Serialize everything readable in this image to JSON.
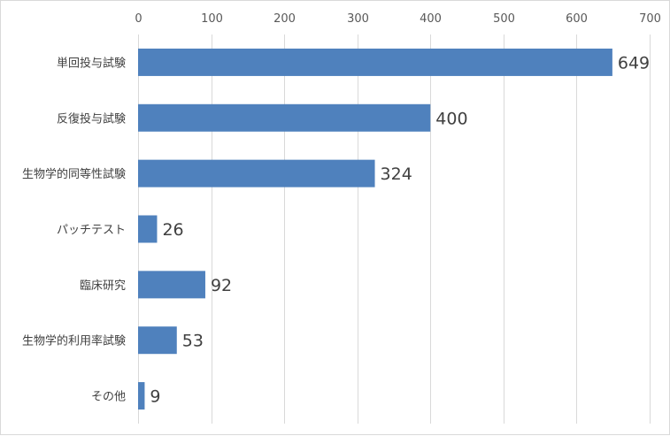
{
  "chart_data": {
    "type": "bar",
    "orientation": "horizontal",
    "categories": [
      "単回投与試験",
      "反復投与試験",
      "生物学的同等性試験",
      "パッチテスト",
      "臨床研究",
      "生物学的利用率試験",
      "その他"
    ],
    "values": [
      649,
      400,
      324,
      26,
      92,
      53,
      9
    ],
    "xlim": [
      0,
      700
    ],
    "xticks": [
      0,
      100,
      200,
      300,
      400,
      500,
      600,
      700
    ],
    "x_axis_position": "top",
    "grid": true,
    "data_labels": true,
    "title": "",
    "xlabel": "",
    "ylabel": "",
    "bar_color": "#4f81bd",
    "grid_color": "#d9d9d9"
  }
}
